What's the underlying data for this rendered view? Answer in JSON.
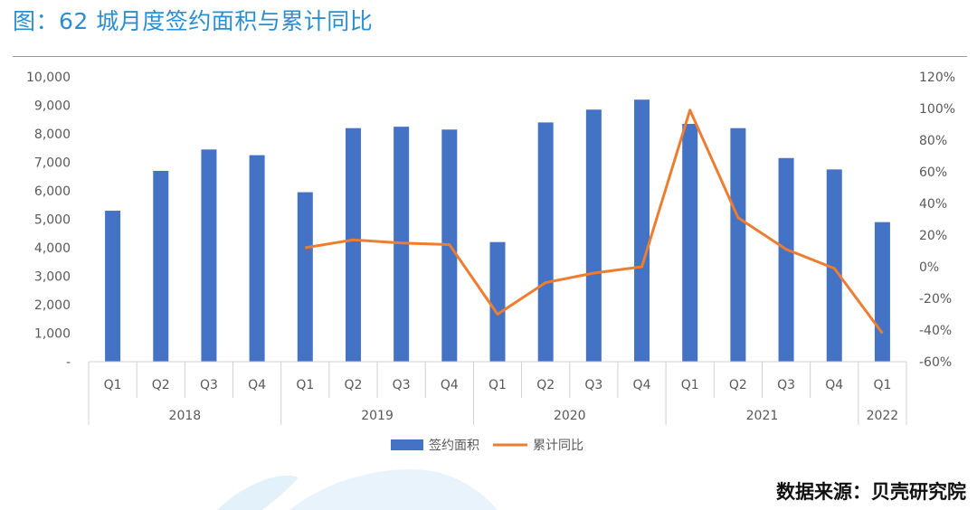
{
  "title": "图：62 城月度签约面积与累计同比",
  "source": "数据来源：贝壳研究院",
  "colors": {
    "bar": "#4472c4",
    "line": "#ed7d31",
    "title": "#2a8fd0"
  },
  "chart_data": {
    "type": "bar",
    "combo": "bar+line",
    "categories": [
      "Q1",
      "Q2",
      "Q3",
      "Q4",
      "Q1",
      "Q2",
      "Q3",
      "Q4",
      "Q1",
      "Q2",
      "Q3",
      "Q4",
      "Q1",
      "Q2",
      "Q3",
      "Q4",
      "Q1"
    ],
    "year_groups": [
      {
        "label": "2018",
        "count": 4
      },
      {
        "label": "2019",
        "count": 4
      },
      {
        "label": "2020",
        "count": 4
      },
      {
        "label": "2021",
        "count": 4
      },
      {
        "label": "2022",
        "count": 1
      }
    ],
    "left_axis": {
      "min": 0,
      "max": 10000,
      "step": 1000,
      "tick_labels": [
        "-",
        "1,000",
        "2,000",
        "3,000",
        "4,000",
        "5,000",
        "6,000",
        "7,000",
        "8,000",
        "9,000",
        "10,000"
      ]
    },
    "right_axis": {
      "min": -60,
      "max": 120,
      "step": 20,
      "tick_labels": [
        "-60%",
        "-40%",
        "-20%",
        "0%",
        "20%",
        "40%",
        "60%",
        "80%",
        "100%",
        "120%"
      ]
    },
    "series": [
      {
        "name": "签约面积",
        "type": "bar",
        "axis": "left",
        "values": [
          5300,
          6700,
          7450,
          7250,
          5950,
          8200,
          8250,
          8150,
          4200,
          8400,
          8850,
          9200,
          8350,
          8200,
          7150,
          6750,
          4900
        ]
      },
      {
        "name": "累计同比",
        "type": "line",
        "axis": "right",
        "values": [
          null,
          null,
          null,
          null,
          12,
          17,
          15,
          14,
          -30,
          -10,
          -4,
          0,
          99,
          31,
          11,
          -1,
          -42
        ]
      }
    ],
    "legend": [
      "签约面积",
      "累计同比"
    ],
    "legend_position": "bottom"
  }
}
